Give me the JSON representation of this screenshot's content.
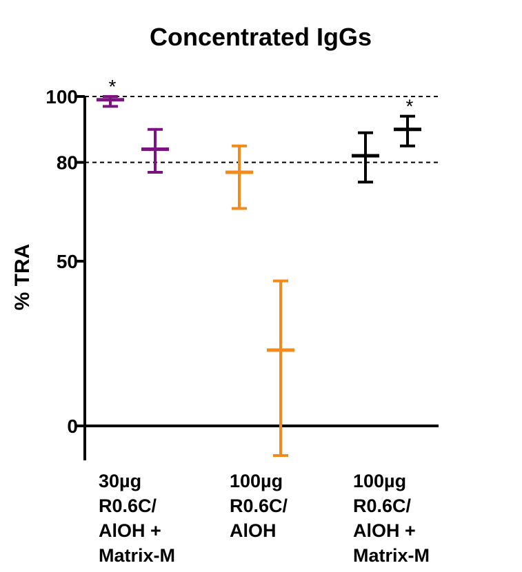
{
  "chart_data": {
    "type": "scatter",
    "title": "Concentrated IgGs",
    "ylabel": "% TRA",
    "ylim": [
      -10,
      100
    ],
    "yticks": [
      0,
      50,
      80,
      100
    ],
    "reference_lines": [
      80,
      100
    ],
    "groups": [
      "30µg\nR0.6C/\nAlOH +\nMatrix-M",
      "100µg\nR0.6C/\nAlOH",
      "100µg\nR0.6C/\nAlOH +\nMatrix-M"
    ],
    "points": [
      {
        "group": 0,
        "slot": 0,
        "mean": 99,
        "low": 97,
        "high": 100,
        "color": "#7a1580",
        "significant": true
      },
      {
        "group": 0,
        "slot": 1,
        "mean": 84,
        "low": 77,
        "high": 90,
        "color": "#7a1580",
        "significant": false
      },
      {
        "group": 1,
        "slot": 0,
        "mean": 77,
        "low": 66,
        "high": 85,
        "color": "#f28a1c",
        "significant": false
      },
      {
        "group": 1,
        "slot": 1,
        "mean": 23,
        "low": -9,
        "high": 44,
        "color": "#f28a1c",
        "significant": false
      },
      {
        "group": 2,
        "slot": 0,
        "mean": 82,
        "low": 74,
        "high": 89,
        "color": "#000000",
        "significant": false
      },
      {
        "group": 2,
        "slot": 1,
        "mean": 90,
        "low": 85,
        "high": 94,
        "color": "#000000",
        "significant": true
      }
    ],
    "significance_marker": "*",
    "grid": false
  }
}
